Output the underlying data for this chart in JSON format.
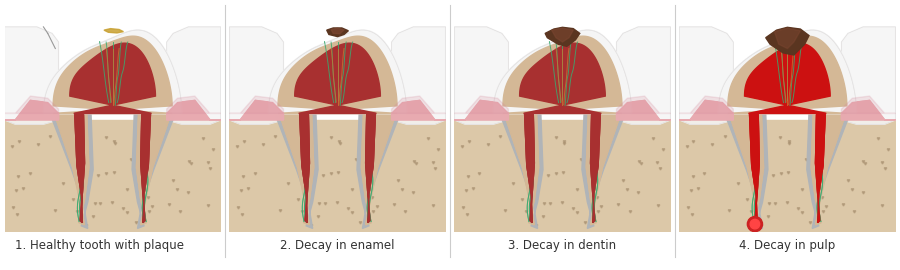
{
  "background_color": "#ffffff",
  "labels": [
    "1. Healthy tooth with plaque",
    "2. Decay in enamel",
    "3. Decay in dentin",
    "4. Decay in pulp"
  ],
  "label_fontsize": 8.5,
  "label_color": "#333333",
  "colors": {
    "enamel_white": "#f5f5f5",
    "enamel_shadow": "#e0dede",
    "dentin_outer": "#d4b896",
    "dentin_inner": "#c8a87a",
    "pulp_red": "#a83030",
    "pulp_dark": "#8b2020",
    "pulp_bright": "#c04040",
    "nerve_green": "#3aaa70",
    "nerve_orange": "#cc7733",
    "pdl_gray": "#b0b4b8",
    "jaw_bone": "#dcc8a8",
    "jaw_dots": "#a89070",
    "gum_pink": "#e8aab0",
    "gum_dark": "#d4889a",
    "adj_tooth": "#eeeeee",
    "decay_brown": "#5a3520",
    "decay_mid": "#7a4530",
    "abscess_red": "#cc2222",
    "plaque_gold": "#c8a030",
    "blood_red": "#cc1111",
    "divider": "#cccccc"
  }
}
